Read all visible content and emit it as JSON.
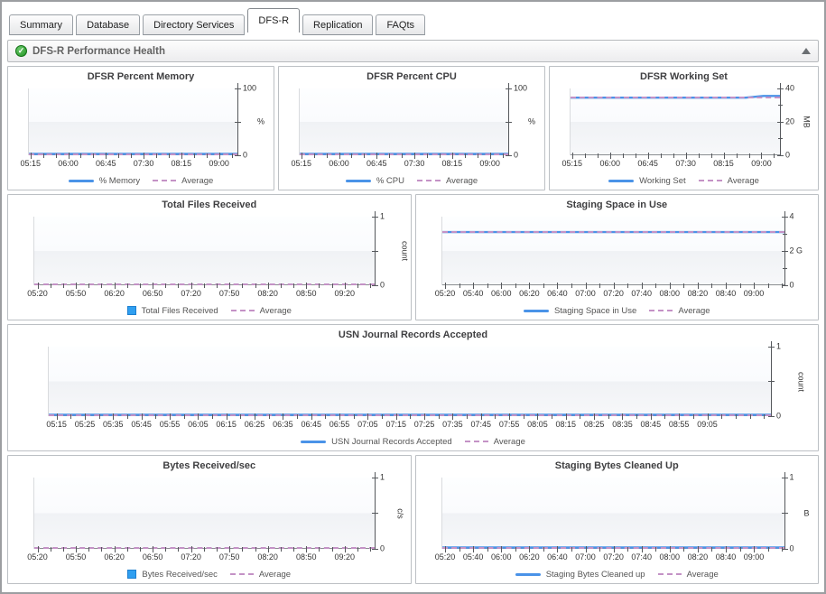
{
  "tabs": [
    {
      "label": "Summary",
      "active": false
    },
    {
      "label": "Database",
      "active": false
    },
    {
      "label": "Directory Services",
      "active": false
    },
    {
      "label": "DFS-R",
      "active": true
    },
    {
      "label": "Replication",
      "active": false
    },
    {
      "label": "FAQts",
      "active": false
    }
  ],
  "section": {
    "title": "DFS-R Performance Health",
    "status_icon": "check-circle-green",
    "status_glyph": "✓",
    "collapse_icon": "triangle-up"
  },
  "colors": {
    "series_line": "#4a93e8",
    "series_fill": "#2f9ff0",
    "average_dash": "#c492c6",
    "axis": "#55585c"
  },
  "chart_data": [
    {
      "type": "line",
      "title": "DFSR Percent Memory",
      "ylim": [
        0,
        100
      ],
      "y_divisions": 2,
      "y_tick_labels": [
        {
          "frac": 1,
          "text": "100"
        },
        {
          "frac": 0,
          "text": "0"
        }
      ],
      "unit": "%",
      "unit_rotated": false,
      "x_tick_labels": [
        "05:15",
        "06:00",
        "06:45",
        "07:30",
        "08:15",
        "09:00"
      ],
      "x_minor_between": 2,
      "series": [
        {
          "name": "% Memory",
          "values": [
            1.3,
            1.1,
            1.2,
            1.3,
            1.1,
            1.4,
            1.2,
            1.1,
            1.3,
            1.2,
            1.1,
            1.3,
            1.2
          ]
        }
      ],
      "average": {
        "label": "Average",
        "value": 1.2
      }
    },
    {
      "type": "line",
      "title": "DFSR Percent CPU",
      "ylim": [
        0,
        100
      ],
      "y_divisions": 2,
      "y_tick_labels": [
        {
          "frac": 1,
          "text": "100"
        },
        {
          "frac": 0,
          "text": "0"
        }
      ],
      "unit": "%",
      "unit_rotated": false,
      "x_tick_labels": [
        "05:15",
        "06:00",
        "06:45",
        "07:30",
        "08:15",
        "09:00"
      ],
      "x_minor_between": 2,
      "series": [
        {
          "name": "% CPU",
          "values": [
            0.9,
            1.3,
            1.0,
            1.4,
            0.8,
            1.2,
            1.0,
            1.3,
            0.9,
            1.2,
            1.4,
            1.0,
            1.2
          ]
        }
      ],
      "average": {
        "label": "Average",
        "value": 1.1
      }
    },
    {
      "type": "line",
      "title": "DFSR Working Set",
      "ylim": [
        0,
        40
      ],
      "y_divisions": 4,
      "y_tick_labels": [
        {
          "frac": 1,
          "text": "40"
        },
        {
          "frac": 0.5,
          "text": "20"
        },
        {
          "frac": 0,
          "text": "0"
        }
      ],
      "unit": "MB",
      "unit_rotated": true,
      "x_tick_labels": [
        "05:15",
        "06:00",
        "06:45",
        "07:30",
        "08:15",
        "09:00"
      ],
      "x_minor_between": 2,
      "series": [
        {
          "name": "Working Set",
          "values": [
            34.5,
            34.5,
            34.5,
            34.5,
            34.5,
            34.5,
            34.5,
            34.5,
            34.5,
            34.5,
            34.5,
            35.5,
            35.5
          ]
        }
      ],
      "average": {
        "label": "Average",
        "value": 34.6
      }
    },
    {
      "type": "bar",
      "title": "Total Files Received",
      "ylim": [
        0,
        1
      ],
      "y_divisions": 2,
      "y_tick_labels": [
        {
          "frac": 1,
          "text": "1"
        },
        {
          "frac": 0,
          "text": "0"
        }
      ],
      "unit": "count",
      "unit_rotated": true,
      "x_tick_labels": [
        "05:20",
        "05:50",
        "06:20",
        "06:50",
        "07:20",
        "07:50",
        "08:20",
        "08:50",
        "09:20"
      ],
      "x_minor_between": 2,
      "series": [
        {
          "name": "Total Files Received",
          "values": [
            0,
            0,
            0,
            0,
            0,
            0,
            0,
            0,
            0
          ]
        }
      ],
      "average": {
        "label": "Average",
        "value": 0
      }
    },
    {
      "type": "line",
      "title": "Staging Space in Use",
      "ylim": [
        0,
        4
      ],
      "y_divisions": 4,
      "y_tick_labels": [
        {
          "frac": 1,
          "text": "4"
        },
        {
          "frac": 0.5,
          "text": "2 G"
        },
        {
          "frac": 0,
          "text": "0"
        }
      ],
      "unit": "",
      "unit_rotated": false,
      "x_tick_labels": [
        "05:20",
        "05:40",
        "06:00",
        "06:20",
        "06:40",
        "07:00",
        "07:20",
        "07:40",
        "08:00",
        "08:20",
        "08:40",
        "09:00"
      ],
      "x_minor_between": 1,
      "series": [
        {
          "name": "Staging Space in Use",
          "values": [
            3.1,
            3.1,
            3.1,
            3.1,
            3.1,
            3.1,
            3.1,
            3.1,
            3.1,
            3.1,
            3.1,
            3.1,
            3.1
          ]
        }
      ],
      "average": {
        "label": "Average",
        "value": 3.1
      }
    },
    {
      "type": "line",
      "title": "USN Journal Records Accepted",
      "ylim": [
        0,
        1
      ],
      "y_divisions": 2,
      "y_tick_labels": [
        {
          "frac": 1,
          "text": "1"
        },
        {
          "frac": 0,
          "text": "0"
        }
      ],
      "unit": "count",
      "unit_rotated": true,
      "x_tick_labels": [
        "05:15",
        "05:25",
        "05:35",
        "05:45",
        "05:55",
        "06:05",
        "06:15",
        "06:25",
        "06:35",
        "06:45",
        "06:55",
        "07:05",
        "07:15",
        "07:25",
        "07:35",
        "07:45",
        "07:55",
        "08:05",
        "08:15",
        "08:25",
        "08:35",
        "08:45",
        "08:55",
        "09:05"
      ],
      "x_minor_between": 1,
      "series": [
        {
          "name": "USN Journal Records Accepted",
          "values": [
            0,
            0,
            0,
            0,
            0,
            0,
            0,
            0,
            0,
            0,
            0,
            0,
            0,
            0,
            0,
            0,
            0,
            0,
            0,
            0,
            0,
            0,
            0,
            0
          ]
        }
      ],
      "average": {
        "label": "Average",
        "value": 0
      }
    },
    {
      "type": "bar",
      "title": "Bytes Received/sec",
      "ylim": [
        0,
        1
      ],
      "y_divisions": 2,
      "y_tick_labels": [
        {
          "frac": 1,
          "text": "1"
        },
        {
          "frac": 0,
          "text": "0"
        }
      ],
      "unit": "c/s",
      "unit_rotated": true,
      "x_tick_labels": [
        "05:20",
        "05:50",
        "06:20",
        "06:50",
        "07:20",
        "07:50",
        "08:20",
        "08:50",
        "09:20"
      ],
      "x_minor_between": 2,
      "series": [
        {
          "name": "Bytes Received/sec",
          "values": [
            0,
            0,
            0,
            0,
            0,
            0,
            0,
            0,
            0
          ]
        }
      ],
      "average": {
        "label": "Average",
        "value": 0
      }
    },
    {
      "type": "line",
      "title": "Staging Bytes Cleaned Up",
      "ylim": [
        0,
        1
      ],
      "y_divisions": 2,
      "y_tick_labels": [
        {
          "frac": 1,
          "text": "1"
        },
        {
          "frac": 0,
          "text": "0"
        }
      ],
      "unit": "B",
      "unit_rotated": false,
      "x_tick_labels": [
        "05:20",
        "05:40",
        "06:00",
        "06:20",
        "06:40",
        "07:00",
        "07:20",
        "07:40",
        "08:00",
        "08:20",
        "08:40",
        "09:00"
      ],
      "x_minor_between": 1,
      "series": [
        {
          "name": "Staging Bytes Cleaned up",
          "values": [
            0,
            0,
            0,
            0,
            0,
            0,
            0,
            0,
            0,
            0,
            0,
            0,
            0
          ]
        }
      ],
      "average": {
        "label": "Average",
        "value": 0
      }
    }
  ]
}
